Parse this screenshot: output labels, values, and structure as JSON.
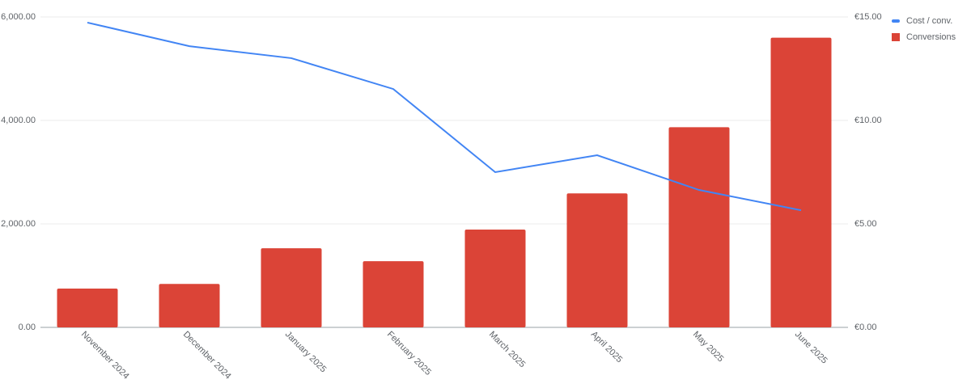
{
  "chart_data": {
    "type": "combo",
    "categories": [
      "November 2024",
      "December 2024",
      "January 2025",
      "February 2025",
      "March 2025",
      "April 2025",
      "May 2025",
      "June 2025"
    ],
    "series": [
      {
        "name": "Cost / conv.",
        "type": "line",
        "axis": "y2",
        "color": "#4285f4",
        "values": [
          14.73,
          13.59,
          13.01,
          11.52,
          7.5,
          8.32,
          6.64,
          5.66
        ]
      },
      {
        "name": "Conversions",
        "type": "bar",
        "color": "#db4437",
        "values": [
          750,
          840,
          1530,
          1280,
          1890,
          2590,
          3870,
          5600
        ]
      }
    ],
    "ylim": [
      0,
      6000
    ],
    "yticks": [
      {
        "value": 0,
        "label": "0.00"
      },
      {
        "value": 2000,
        "label": "2,000.00"
      },
      {
        "value": 4000,
        "label": "4,000.00"
      },
      {
        "value": 6000,
        "label": "6,000.00"
      }
    ],
    "y2lim": [
      0,
      15
    ],
    "y2ticks": [
      {
        "value": 0,
        "label": "€0.00"
      },
      {
        "value": 5,
        "label": "€5.00"
      },
      {
        "value": 10,
        "label": "€10.00"
      },
      {
        "value": 15,
        "label": "€15.00"
      }
    ],
    "grid": true,
    "legend": "top-right"
  }
}
